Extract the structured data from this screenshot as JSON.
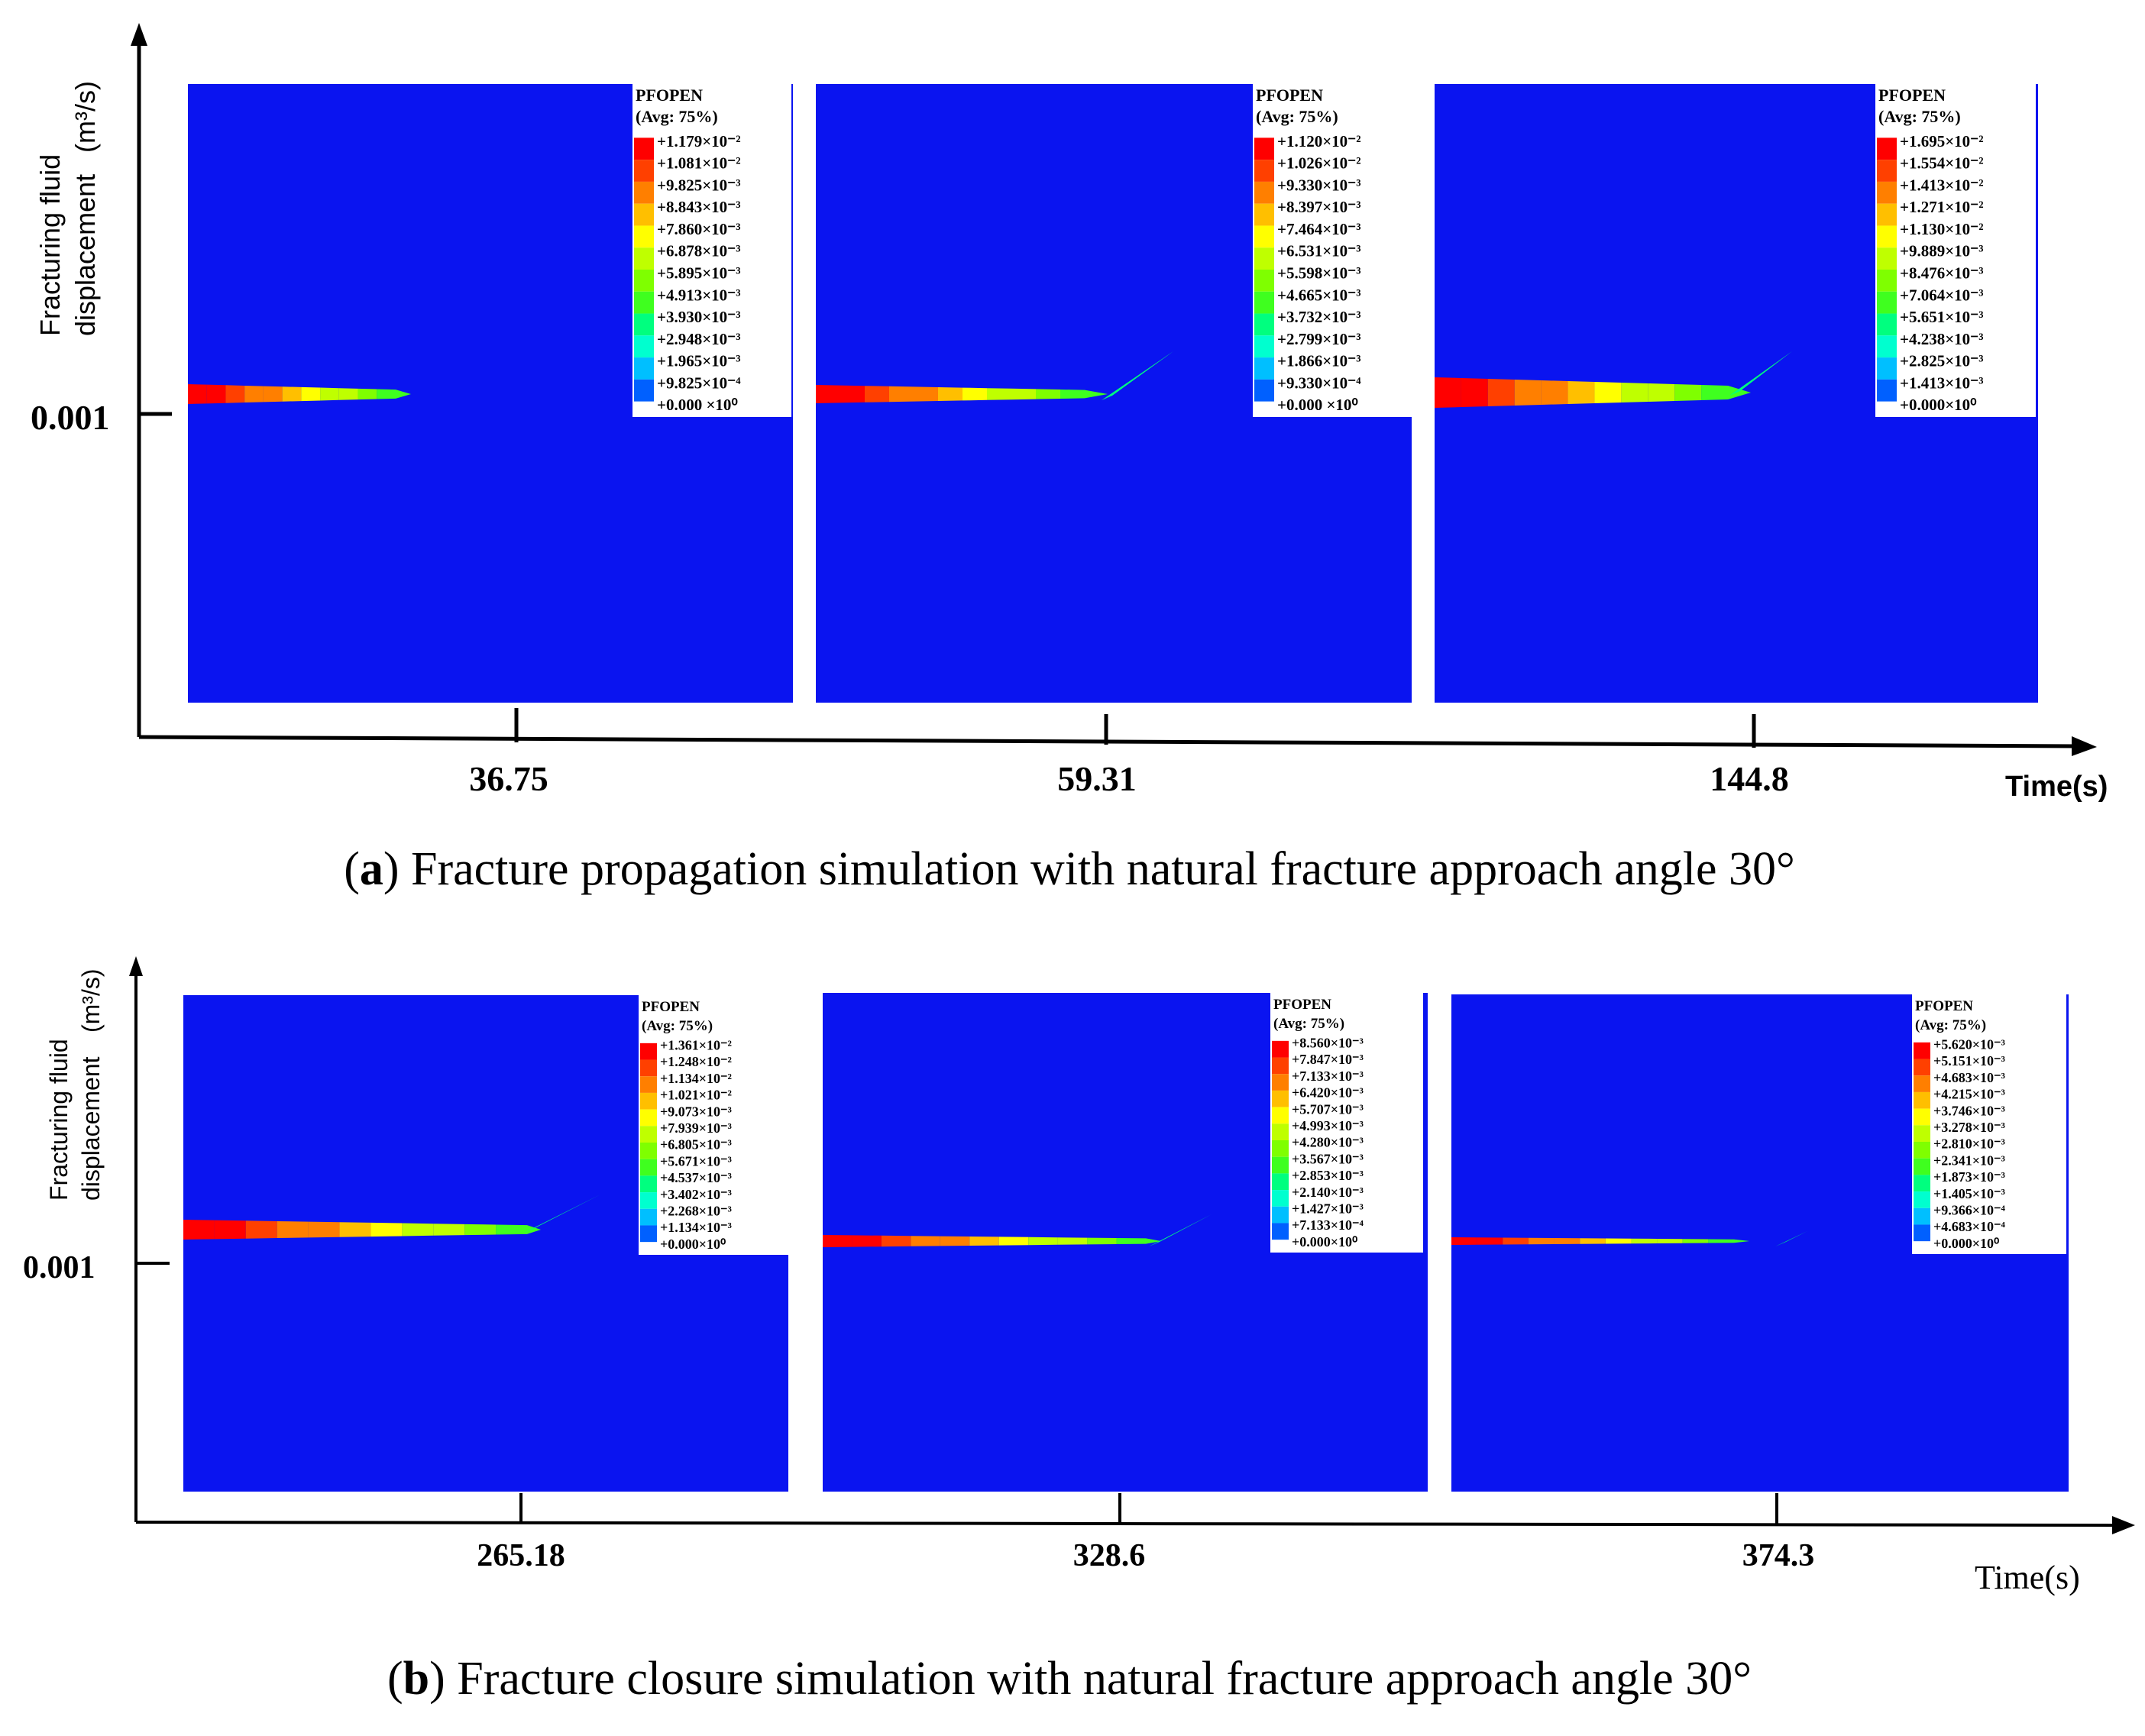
{
  "panels": [
    {
      "id": "a",
      "caption_letter": "a",
      "caption_text": "Fracture propagation simulation with natural fracture approach angle 30°",
      "y_axis": {
        "label_line1": "Fracturing fluid",
        "label_line2": "displacement",
        "unit": "(m³/s)",
        "tick": "0.001"
      },
      "x_axis": {
        "label": "Time(s)"
      },
      "frames": [
        {
          "time": "36.75",
          "legend": {
            "title": "PFOPEN",
            "subtitle": "(Avg: 75%)",
            "values": [
              "+1.179×10⁻²",
              "+1.081×10⁻²",
              "+9.825×10⁻³",
              "+8.843×10⁻³",
              "+7.860×10⁻³",
              "+6.878×10⁻³",
              "+5.895×10⁻³",
              "+4.913×10⁻³",
              "+3.930×10⁻³",
              "+2.948×10⁻³",
              "+1.965×10⁻³",
              "+9.825×10⁻⁴",
              "+0.000 ×10⁰"
            ]
          }
        },
        {
          "time": "59.31",
          "legend": {
            "title": "PFOPEN",
            "subtitle": "(Avg: 75%)",
            "values": [
              "+1.120×10⁻²",
              "+1.026×10⁻²",
              "+9.330×10⁻³",
              "+8.397×10⁻³",
              "+7.464×10⁻³",
              "+6.531×10⁻³",
              "+5.598×10⁻³",
              "+4.665×10⁻³",
              "+3.732×10⁻³",
              "+2.799×10⁻³",
              "+1.866×10⁻³",
              "+9.330×10⁻⁴",
              "+0.000 ×10⁰"
            ]
          }
        },
        {
          "time": "144.8",
          "legend": {
            "title": "PFOPEN",
            "subtitle": "(Avg: 75%)",
            "values": [
              "+1.695×10⁻²",
              "+1.554×10⁻²",
              "+1.413×10⁻²",
              "+1.271×10⁻²",
              "+1.130×10⁻²",
              "+9.889×10⁻³",
              "+8.476×10⁻³",
              "+7.064×10⁻³",
              "+5.651×10⁻³",
              "+4.238×10⁻³",
              "+2.825×10⁻³",
              "+1.413×10⁻³",
              "+0.000×10⁰"
            ]
          }
        }
      ]
    },
    {
      "id": "b",
      "caption_letter": "b",
      "caption_text": "Fracture closure simulation with natural fracture approach angle 30°",
      "y_axis": {
        "label_line1": "Fracturing fluid",
        "label_line2": "displacement",
        "unit": "(m³/s)",
        "tick": "0.001"
      },
      "x_axis": {
        "label": "Time(s)"
      },
      "frames": [
        {
          "time": "265.18",
          "legend": {
            "title": "PFOPEN",
            "subtitle": "(Avg: 75%)",
            "values": [
              "+1.361×10⁻²",
              "+1.248×10⁻²",
              "+1.134×10⁻²",
              "+1.021×10⁻²",
              "+9.073×10⁻³",
              "+7.939×10⁻³",
              "+6.805×10⁻³",
              "+5.671×10⁻³",
              "+4.537×10⁻³",
              "+3.402×10⁻³",
              "+2.268×10⁻³",
              "+1.134×10⁻³",
              "+0.000×10⁰"
            ]
          }
        },
        {
          "time": "328.6",
          "legend": {
            "title": "PFOPEN",
            "subtitle": "(Avg: 75%)",
            "values": [
              "+8.560×10⁻³",
              "+7.847×10⁻³",
              "+7.133×10⁻³",
              "+6.420×10⁻³",
              "+5.707×10⁻³",
              "+4.993×10⁻³",
              "+4.280×10⁻³",
              "+3.567×10⁻³",
              "+2.853×10⁻³",
              "+2.140×10⁻³",
              "+1.427×10⁻³",
              "+7.133×10⁻⁴",
              "+0.000×10⁰"
            ]
          }
        },
        {
          "time": "374.3",
          "legend": {
            "title": "PFOPEN",
            "subtitle": "(Avg: 75%)",
            "values": [
              "+5.620×10⁻³",
              "+5.151×10⁻³",
              "+4.683×10⁻³",
              "+4.215×10⁻³",
              "+3.746×10⁻³",
              "+3.278×10⁻³",
              "+2.810×10⁻³",
              "+2.341×10⁻³",
              "+1.873×10⁻³",
              "+1.405×10⁻³",
              "+9.366×10⁻⁴",
              "+4.683×10⁻⁴",
              "+0.000×10⁰"
            ]
          }
        }
      ]
    }
  ],
  "colormap": [
    "#ff0000",
    "#ff4000",
    "#ff7f00",
    "#ffbf00",
    "#ffff00",
    "#bfff00",
    "#7fff00",
    "#3fff1f",
    "#00ff7f",
    "#00ffcf",
    "#00bfff",
    "#0060ff",
    "#0000ff"
  ],
  "field_color": "#0a14f0"
}
